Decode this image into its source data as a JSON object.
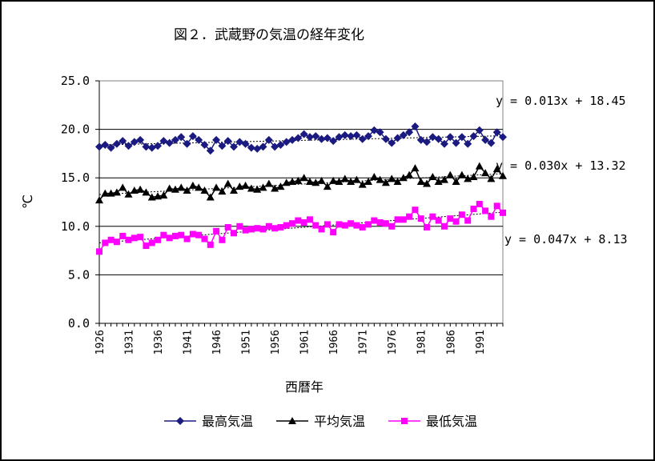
{
  "chart_data": {
    "type": "line",
    "title": "図２．武蔵野の気温の経年変化",
    "xlabel": "西暦年",
    "ylabel": "℃",
    "ylim": [
      0,
      25
    ],
    "y_ticks": [
      "0.0",
      "5.0",
      "10.0",
      "15.0",
      "20.0",
      "25.0"
    ],
    "x_tick_labels": [
      "1926",
      "1931",
      "1936",
      "1941",
      "1946",
      "1951",
      "1956",
      "1961",
      "1966",
      "1971",
      "1976",
      "1981",
      "1986",
      "1991"
    ],
    "grid": "horizontal",
    "legend_position": "bottom",
    "x": [
      1926,
      1927,
      1928,
      1929,
      1930,
      1931,
      1932,
      1933,
      1934,
      1935,
      1936,
      1937,
      1938,
      1939,
      1940,
      1941,
      1942,
      1943,
      1944,
      1945,
      1946,
      1947,
      1948,
      1949,
      1950,
      1951,
      1952,
      1953,
      1954,
      1955,
      1956,
      1957,
      1958,
      1959,
      1960,
      1961,
      1962,
      1963,
      1964,
      1965,
      1966,
      1967,
      1968,
      1969,
      1970,
      1971,
      1972,
      1973,
      1974,
      1975,
      1976,
      1977,
      1978,
      1979,
      1980,
      1981,
      1982,
      1983,
      1984,
      1985,
      1986,
      1987,
      1988,
      1989,
      1990,
      1991,
      1992,
      1993,
      1994,
      1995
    ],
    "series": [
      {
        "name": "最高気温",
        "color": "#1a1a80",
        "marker": "diamond",
        "trend": "y = 0.013x + 18.45",
        "values": [
          18.2,
          18.4,
          18.1,
          18.5,
          18.8,
          18.3,
          18.7,
          18.9,
          18.2,
          18.1,
          18.3,
          18.8,
          18.6,
          18.9,
          19.2,
          18.5,
          19.3,
          18.9,
          18.4,
          17.8,
          18.9,
          18.3,
          18.8,
          18.2,
          18.7,
          18.5,
          18.1,
          18.0,
          18.2,
          18.9,
          18.2,
          18.4,
          18.7,
          18.9,
          19.1,
          19.5,
          19.2,
          19.3,
          19.0,
          19.1,
          18.8,
          19.2,
          19.4,
          19.3,
          19.4,
          19.0,
          19.3,
          19.9,
          19.7,
          19.0,
          18.6,
          19.1,
          19.4,
          19.7,
          20.3,
          18.9,
          18.7,
          19.2,
          19.0,
          18.5,
          19.2,
          18.6,
          19.2,
          18.5,
          19.3,
          19.9,
          18.9,
          18.6,
          19.7,
          19.2
        ]
      },
      {
        "name": "平均気温",
        "color": "#000000",
        "marker": "triangle",
        "trend": "y = 0.030x + 13.32",
        "values": [
          12.7,
          13.4,
          13.4,
          13.5,
          14.0,
          13.3,
          13.7,
          13.8,
          13.5,
          13.0,
          13.1,
          13.2,
          13.9,
          13.8,
          14.0,
          13.7,
          14.2,
          14.0,
          13.7,
          13.0,
          14.0,
          13.6,
          14.4,
          13.7,
          14.1,
          14.2,
          13.9,
          13.8,
          14.0,
          14.4,
          13.9,
          14.1,
          14.5,
          14.6,
          14.7,
          15.0,
          14.6,
          14.5,
          14.7,
          14.1,
          14.7,
          14.6,
          14.9,
          14.6,
          14.8,
          14.3,
          14.6,
          15.1,
          14.8,
          14.5,
          14.9,
          14.6,
          15.0,
          15.3,
          16.0,
          14.6,
          14.4,
          15.1,
          14.6,
          14.8,
          15.3,
          14.6,
          15.3,
          14.9,
          15.1,
          16.2,
          15.5,
          14.9,
          15.9,
          15.2
        ]
      },
      {
        "name": "最低気温",
        "color": "#ff00ff",
        "marker": "square",
        "trend": "y = 0.047x + 8.13",
        "values": [
          7.4,
          8.3,
          8.6,
          8.4,
          9.0,
          8.6,
          8.8,
          8.9,
          8.0,
          8.3,
          8.6,
          9.1,
          8.8,
          9.0,
          9.1,
          8.7,
          9.2,
          9.1,
          8.7,
          8.1,
          9.5,
          8.6,
          9.9,
          9.3,
          10.0,
          9.6,
          9.7,
          9.8,
          9.7,
          10.0,
          9.8,
          9.9,
          10.1,
          10.3,
          10.6,
          10.4,
          10.7,
          10.1,
          9.7,
          10.2,
          9.4,
          10.2,
          10.1,
          10.3,
          10.1,
          9.9,
          10.2,
          10.6,
          10.4,
          10.3,
          10.0,
          10.7,
          10.7,
          11.0,
          11.7,
          10.8,
          9.9,
          11.0,
          10.6,
          10.0,
          10.8,
          10.5,
          11.2,
          10.6,
          11.8,
          12.3,
          11.6,
          11.0,
          12.1,
          11.4
        ]
      }
    ]
  }
}
